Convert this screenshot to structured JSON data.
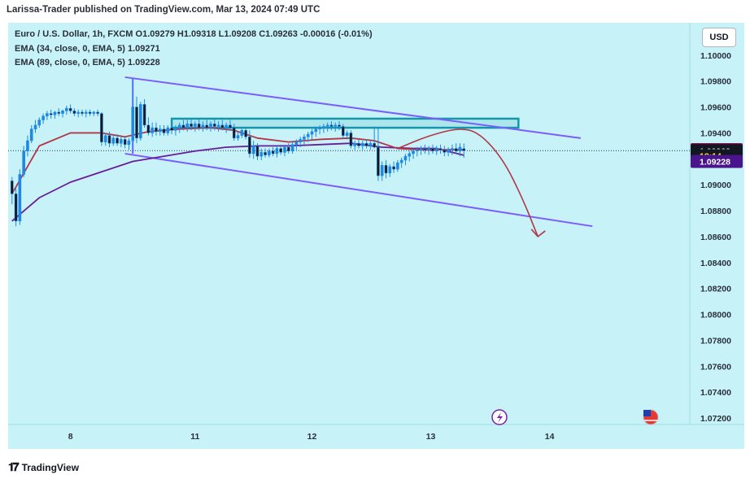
{
  "header": {
    "published": "Larissa-Trader published on TradingView.com, Mar 13, 2024 07:49 UTC"
  },
  "legend": {
    "line1": "Euro / U.S. Dollar, 1h, FXCM  O1.09279  H1.09318  L1.09208  C1.09263  -0.00016 (-0.01%)",
    "line2": "EMA (34, close, 0, EMA, 5)  1.09271",
    "line3": "EMA (89, close, 0, EMA, 5)  1.09228"
  },
  "currency_label": "USD",
  "footer": {
    "logo_icon": "tradingview-logo-icon",
    "brand": "TradingView"
  },
  "colors": {
    "background": "#c7f3f8",
    "candle": "#1e88e5",
    "ema34": "#b23645",
    "ema89": "#6a1b9a",
    "channel": "#7b5cff",
    "zone": "#1497a8",
    "projection": "#b23645"
  },
  "chart_data": {
    "type": "candlestick",
    "symbol": "EURUSD",
    "timeframe": "1h",
    "y_axis": {
      "ticks": [
        "1.10000",
        "1.09800",
        "1.09600",
        "1.09400",
        "1.09200",
        "1.09000",
        "1.08800",
        "1.08600",
        "1.08400",
        "1.08200",
        "1.08000",
        "1.07800",
        "1.07600",
        "1.07400",
        "1.07200"
      ],
      "ylim": [
        1.0715,
        1.1025
      ]
    },
    "x_axis": {
      "ticks": [
        {
          "label": "8",
          "t": 16
        },
        {
          "label": "11",
          "t": 48
        },
        {
          "label": "12",
          "t": 78
        },
        {
          "label": "13",
          "t": 108.5
        },
        {
          "label": "14",
          "t": 139
        }
      ],
      "xlim": [
        0,
        175
      ]
    },
    "price_tags": [
      {
        "label": "1.09271",
        "value": 1.09271,
        "color": "#880e4f",
        "text_color": "#ffffff"
      },
      {
        "label": "1.09263",
        "value": 1.09263,
        "color": "#131722",
        "text_color": "#ffffff"
      },
      {
        "label": "18:14",
        "value": 1.09225,
        "color": "#131722",
        "text_color": "#ffeb3b"
      },
      {
        "label": "1.09228",
        "value": 1.0918,
        "color": "#4a148c",
        "text_color": "#ffffff"
      }
    ],
    "candles": [
      {
        "t": 1,
        "o": 1.0903,
        "h": 1.0906,
        "l": 1.0885,
        "c": 1.0893
      },
      {
        "t": 2,
        "o": 1.0893,
        "h": 1.0898,
        "l": 1.0868,
        "c": 1.0872
      },
      {
        "t": 3,
        "o": 1.0872,
        "h": 1.0912,
        "l": 1.0869,
        "c": 1.0908
      },
      {
        "t": 4,
        "o": 1.0908,
        "h": 1.093,
        "l": 1.0906,
        "c": 1.0926
      },
      {
        "t": 5,
        "o": 1.0926,
        "h": 1.0938,
        "l": 1.0922,
        "c": 1.0934
      },
      {
        "t": 6,
        "o": 1.0934,
        "h": 1.0946,
        "l": 1.0932,
        "c": 1.0943
      },
      {
        "t": 7,
        "o": 1.0943,
        "h": 1.095,
        "l": 1.094,
        "c": 1.0946
      },
      {
        "t": 8,
        "o": 1.0946,
        "h": 1.0952,
        "l": 1.0944,
        "c": 1.095
      },
      {
        "t": 9,
        "o": 1.095,
        "h": 1.0955,
        "l": 1.0947,
        "c": 1.0953
      },
      {
        "t": 10,
        "o": 1.0953,
        "h": 1.0957,
        "l": 1.095,
        "c": 1.0955
      },
      {
        "t": 11,
        "o": 1.0955,
        "h": 1.0958,
        "l": 1.0951,
        "c": 1.0954
      },
      {
        "t": 12,
        "o": 1.0954,
        "h": 1.0957,
        "l": 1.0951,
        "c": 1.0956
      },
      {
        "t": 13,
        "o": 1.0956,
        "h": 1.0959,
        "l": 1.0953,
        "c": 1.0955
      },
      {
        "t": 14,
        "o": 1.0955,
        "h": 1.0958,
        "l": 1.0952,
        "c": 1.0957
      },
      {
        "t": 15,
        "o": 1.0957,
        "h": 1.0961,
        "l": 1.0954,
        "c": 1.0959
      },
      {
        "t": 16,
        "o": 1.0959,
        "h": 1.0962,
        "l": 1.0955,
        "c": 1.0957
      },
      {
        "t": 17,
        "o": 1.0957,
        "h": 1.0959,
        "l": 1.0953,
        "c": 1.0955
      },
      {
        "t": 18,
        "o": 1.0955,
        "h": 1.0958,
        "l": 1.0952,
        "c": 1.0956
      },
      {
        "t": 19,
        "o": 1.0956,
        "h": 1.0958,
        "l": 1.0953,
        "c": 1.0955
      },
      {
        "t": 20,
        "o": 1.0955,
        "h": 1.0958,
        "l": 1.0952,
        "c": 1.0956
      },
      {
        "t": 21,
        "o": 1.0956,
        "h": 1.0958,
        "l": 1.0953,
        "c": 1.0955
      },
      {
        "t": 22,
        "o": 1.0955,
        "h": 1.0957,
        "l": 1.0953,
        "c": 1.0956
      },
      {
        "t": 23,
        "o": 1.0956,
        "h": 1.0958,
        "l": 1.0953,
        "c": 1.0955
      },
      {
        "t": 24,
        "o": 1.0955,
        "h": 1.0956,
        "l": 1.093,
        "c": 1.0933
      },
      {
        "t": 25,
        "o": 1.0933,
        "h": 1.094,
        "l": 1.093,
        "c": 1.0938
      },
      {
        "t": 26,
        "o": 1.0938,
        "h": 1.0941,
        "l": 1.0929,
        "c": 1.0932
      },
      {
        "t": 27,
        "o": 1.0932,
        "h": 1.0938,
        "l": 1.093,
        "c": 1.0936
      },
      {
        "t": 28,
        "o": 1.0936,
        "h": 1.0939,
        "l": 1.093,
        "c": 1.0932
      },
      {
        "t": 29,
        "o": 1.0932,
        "h": 1.0937,
        "l": 1.0929,
        "c": 1.0935
      },
      {
        "t": 30,
        "o": 1.0935,
        "h": 1.0937,
        "l": 1.0928,
        "c": 1.0931
      },
      {
        "t": 31,
        "o": 1.0931,
        "h": 1.0936,
        "l": 1.0927,
        "c": 1.0934
      },
      {
        "t": 32,
        "o": 1.0934,
        "h": 1.0982,
        "l": 1.0928,
        "c": 1.096
      },
      {
        "t": 33,
        "o": 1.096,
        "h": 1.0968,
        "l": 1.0932,
        "c": 1.0936
      },
      {
        "t": 34,
        "o": 1.0936,
        "h": 1.0964,
        "l": 1.0934,
        "c": 1.0962
      },
      {
        "t": 35,
        "o": 1.0962,
        "h": 1.0966,
        "l": 1.0944,
        "c": 1.0946
      },
      {
        "t": 36,
        "o": 1.0946,
        "h": 1.0952,
        "l": 1.0938,
        "c": 1.094
      },
      {
        "t": 37,
        "o": 1.094,
        "h": 1.0948,
        "l": 1.0937,
        "c": 1.0944
      },
      {
        "t": 38,
        "o": 1.0944,
        "h": 1.0948,
        "l": 1.0938,
        "c": 1.0941
      },
      {
        "t": 39,
        "o": 1.0941,
        "h": 1.0946,
        "l": 1.0938,
        "c": 1.0943
      },
      {
        "t": 40,
        "o": 1.0943,
        "h": 1.0946,
        "l": 1.0938,
        "c": 1.094
      },
      {
        "t": 41,
        "o": 1.094,
        "h": 1.0946,
        "l": 1.0938,
        "c": 1.0944
      },
      {
        "t": 42,
        "o": 1.0944,
        "h": 1.0947,
        "l": 1.0939,
        "c": 1.0942
      },
      {
        "t": 43,
        "o": 1.0942,
        "h": 1.0946,
        "l": 1.0938,
        "c": 1.0944
      },
      {
        "t": 44,
        "o": 1.0944,
        "h": 1.0948,
        "l": 1.094,
        "c": 1.0946
      },
      {
        "t": 45,
        "o": 1.0946,
        "h": 1.095,
        "l": 1.0942,
        "c": 1.0944
      },
      {
        "t": 46,
        "o": 1.0944,
        "h": 1.095,
        "l": 1.0941,
        "c": 1.0947
      },
      {
        "t": 47,
        "o": 1.0947,
        "h": 1.0951,
        "l": 1.0942,
        "c": 1.0945
      },
      {
        "t": 48,
        "o": 1.0945,
        "h": 1.0949,
        "l": 1.0941,
        "c": 1.0947
      },
      {
        "t": 49,
        "o": 1.0947,
        "h": 1.0951,
        "l": 1.0942,
        "c": 1.0944
      },
      {
        "t": 50,
        "o": 1.0944,
        "h": 1.0949,
        "l": 1.0941,
        "c": 1.0946
      },
      {
        "t": 51,
        "o": 1.0946,
        "h": 1.095,
        "l": 1.0942,
        "c": 1.0944
      },
      {
        "t": 52,
        "o": 1.0944,
        "h": 1.0949,
        "l": 1.0941,
        "c": 1.0947
      },
      {
        "t": 53,
        "o": 1.0947,
        "h": 1.0951,
        "l": 1.0942,
        "c": 1.0945
      },
      {
        "t": 54,
        "o": 1.0945,
        "h": 1.0949,
        "l": 1.0941,
        "c": 1.0946
      },
      {
        "t": 55,
        "o": 1.0946,
        "h": 1.095,
        "l": 1.0942,
        "c": 1.0944
      },
      {
        "t": 56,
        "o": 1.0944,
        "h": 1.0948,
        "l": 1.094,
        "c": 1.0946
      },
      {
        "t": 57,
        "o": 1.0946,
        "h": 1.095,
        "l": 1.0942,
        "c": 1.0944
      },
      {
        "t": 58,
        "o": 1.0944,
        "h": 1.0947,
        "l": 1.0934,
        "c": 1.0936
      },
      {
        "t": 59,
        "o": 1.0936,
        "h": 1.0941,
        "l": 1.0934,
        "c": 1.0938
      },
      {
        "t": 60,
        "o": 1.0938,
        "h": 1.0944,
        "l": 1.0936,
        "c": 1.0942
      },
      {
        "t": 61,
        "o": 1.0942,
        "h": 1.0944,
        "l": 1.0935,
        "c": 1.0937
      },
      {
        "t": 62,
        "o": 1.0937,
        "h": 1.0942,
        "l": 1.0921,
        "c": 1.0924
      },
      {
        "t": 63,
        "o": 1.0924,
        "h": 1.0934,
        "l": 1.092,
        "c": 1.093
      },
      {
        "t": 64,
        "o": 1.093,
        "h": 1.0932,
        "l": 1.0919,
        "c": 1.0922
      },
      {
        "t": 65,
        "o": 1.0922,
        "h": 1.0928,
        "l": 1.0919,
        "c": 1.0925
      },
      {
        "t": 66,
        "o": 1.0925,
        "h": 1.0928,
        "l": 1.0921,
        "c": 1.0923
      },
      {
        "t": 67,
        "o": 1.0923,
        "h": 1.0928,
        "l": 1.0921,
        "c": 1.0926
      },
      {
        "t": 68,
        "o": 1.0926,
        "h": 1.0929,
        "l": 1.0922,
        "c": 1.0924
      },
      {
        "t": 69,
        "o": 1.0924,
        "h": 1.093,
        "l": 1.0921,
        "c": 1.0928
      },
      {
        "t": 70,
        "o": 1.0928,
        "h": 1.0931,
        "l": 1.0923,
        "c": 1.0925
      },
      {
        "t": 71,
        "o": 1.0925,
        "h": 1.0931,
        "l": 1.0922,
        "c": 1.0929
      },
      {
        "t": 72,
        "o": 1.0929,
        "h": 1.0932,
        "l": 1.0924,
        "c": 1.0926
      },
      {
        "t": 73,
        "o": 1.0926,
        "h": 1.0933,
        "l": 1.0924,
        "c": 1.0931
      },
      {
        "t": 74,
        "o": 1.0931,
        "h": 1.0935,
        "l": 1.0927,
        "c": 1.0933
      },
      {
        "t": 75,
        "o": 1.0933,
        "h": 1.0937,
        "l": 1.0929,
        "c": 1.0935
      },
      {
        "t": 76,
        "o": 1.0935,
        "h": 1.0939,
        "l": 1.0931,
        "c": 1.0937
      },
      {
        "t": 77,
        "o": 1.0937,
        "h": 1.0941,
        "l": 1.0933,
        "c": 1.0939
      },
      {
        "t": 78,
        "o": 1.0939,
        "h": 1.0943,
        "l": 1.0935,
        "c": 1.0941
      },
      {
        "t": 79,
        "o": 1.0941,
        "h": 1.0945,
        "l": 1.0937,
        "c": 1.0943
      },
      {
        "t": 80,
        "o": 1.0943,
        "h": 1.0946,
        "l": 1.0939,
        "c": 1.0944
      },
      {
        "t": 81,
        "o": 1.0944,
        "h": 1.0947,
        "l": 1.094,
        "c": 1.0945
      },
      {
        "t": 82,
        "o": 1.0945,
        "h": 1.0948,
        "l": 1.0941,
        "c": 1.0946
      },
      {
        "t": 83,
        "o": 1.0946,
        "h": 1.0949,
        "l": 1.0942,
        "c": 1.0945
      },
      {
        "t": 84,
        "o": 1.0945,
        "h": 1.0948,
        "l": 1.0941,
        "c": 1.0946
      },
      {
        "t": 85,
        "o": 1.0946,
        "h": 1.0949,
        "l": 1.0942,
        "c": 1.0945
      },
      {
        "t": 86,
        "o": 1.0945,
        "h": 1.0947,
        "l": 1.0936,
        "c": 1.0938
      },
      {
        "t": 87,
        "o": 1.0938,
        "h": 1.0942,
        "l": 1.0935,
        "c": 1.094
      },
      {
        "t": 88,
        "o": 1.094,
        "h": 1.0942,
        "l": 1.0928,
        "c": 1.093
      },
      {
        "t": 89,
        "o": 1.093,
        "h": 1.0934,
        "l": 1.0927,
        "c": 1.0932
      },
      {
        "t": 90,
        "o": 1.0932,
        "h": 1.0935,
        "l": 1.0928,
        "c": 1.093
      },
      {
        "t": 91,
        "o": 1.093,
        "h": 1.0934,
        "l": 1.0927,
        "c": 1.0932
      },
      {
        "t": 92,
        "o": 1.0932,
        "h": 1.0935,
        "l": 1.0928,
        "c": 1.093
      },
      {
        "t": 93,
        "o": 1.093,
        "h": 1.0934,
        "l": 1.0927,
        "c": 1.0932
      },
      {
        "t": 94,
        "o": 1.0932,
        "h": 1.0945,
        "l": 1.0928,
        "c": 1.0929
      },
      {
        "t": 95,
        "o": 1.0929,
        "h": 1.0944,
        "l": 1.0903,
        "c": 1.0907
      },
      {
        "t": 96,
        "o": 1.0907,
        "h": 1.0918,
        "l": 1.0903,
        "c": 1.0915
      },
      {
        "t": 97,
        "o": 1.0915,
        "h": 1.0919,
        "l": 1.0905,
        "c": 1.0909
      },
      {
        "t": 98,
        "o": 1.0909,
        "h": 1.0916,
        "l": 1.0906,
        "c": 1.0914
      },
      {
        "t": 99,
        "o": 1.0914,
        "h": 1.0918,
        "l": 1.0909,
        "c": 1.0912
      },
      {
        "t": 100,
        "o": 1.0912,
        "h": 1.0919,
        "l": 1.091,
        "c": 1.0917
      },
      {
        "t": 101,
        "o": 1.0917,
        "h": 1.0921,
        "l": 1.0913,
        "c": 1.0919
      },
      {
        "t": 102,
        "o": 1.0919,
        "h": 1.0924,
        "l": 1.0915,
        "c": 1.0922
      },
      {
        "t": 103,
        "o": 1.0922,
        "h": 1.0926,
        "l": 1.0918,
        "c": 1.0924
      },
      {
        "t": 104,
        "o": 1.0924,
        "h": 1.0928,
        "l": 1.092,
        "c": 1.0926
      },
      {
        "t": 105,
        "o": 1.0926,
        "h": 1.0929,
        "l": 1.0922,
        "c": 1.0927
      },
      {
        "t": 106,
        "o": 1.0927,
        "h": 1.093,
        "l": 1.0923,
        "c": 1.0928
      },
      {
        "t": 107,
        "o": 1.0928,
        "h": 1.0931,
        "l": 1.0924,
        "c": 1.0927
      },
      {
        "t": 108,
        "o": 1.0927,
        "h": 1.093,
        "l": 1.0923,
        "c": 1.0928
      },
      {
        "t": 109,
        "o": 1.0928,
        "h": 1.0931,
        "l": 1.0924,
        "c": 1.0926
      },
      {
        "t": 110,
        "o": 1.0926,
        "h": 1.093,
        "l": 1.0923,
        "c": 1.0928
      },
      {
        "t": 111,
        "o": 1.0928,
        "h": 1.0931,
        "l": 1.0924,
        "c": 1.0927
      },
      {
        "t": 112,
        "o": 1.0927,
        "h": 1.093,
        "l": 1.0922,
        "c": 1.0925
      },
      {
        "t": 113,
        "o": 1.0925,
        "h": 1.0929,
        "l": 1.0922,
        "c": 1.0927
      },
      {
        "t": 114,
        "o": 1.0927,
        "h": 1.0931,
        "l": 1.0923,
        "c": 1.0928
      },
      {
        "t": 115,
        "o": 1.0928,
        "h": 1.0932,
        "l": 1.0924,
        "c": 1.0926
      },
      {
        "t": 116,
        "o": 1.0926,
        "h": 1.0932,
        "l": 1.0922,
        "c": 1.0929
      },
      {
        "t": 117,
        "o": 1.09279,
        "h": 1.09318,
        "l": 1.09208,
        "c": 1.09263
      }
    ],
    "ema34": [
      [
        1,
        1.0893
      ],
      [
        8,
        1.093
      ],
      [
        16,
        1.094
      ],
      [
        24,
        1.094
      ],
      [
        30,
        1.0937
      ],
      [
        36,
        1.0941
      ],
      [
        44,
        1.0943
      ],
      [
        52,
        1.0944
      ],
      [
        58,
        1.0942
      ],
      [
        64,
        1.0936
      ],
      [
        72,
        1.0933
      ],
      [
        80,
        1.0935
      ],
      [
        88,
        1.0936
      ],
      [
        94,
        1.0934
      ],
      [
        100,
        1.0928
      ],
      [
        106,
        1.0927
      ],
      [
        112,
        1.0927
      ],
      [
        117,
        1.09271
      ]
    ],
    "ema89": [
      [
        1,
        1.0872
      ],
      [
        8,
        1.089
      ],
      [
        16,
        1.0902
      ],
      [
        24,
        1.091
      ],
      [
        32,
        1.0918
      ],
      [
        40,
        1.0922
      ],
      [
        48,
        1.0926
      ],
      [
        56,
        1.0929
      ],
      [
        64,
        1.093
      ],
      [
        72,
        1.093
      ],
      [
        80,
        1.0931
      ],
      [
        88,
        1.0932
      ],
      [
        96,
        1.0929
      ],
      [
        104,
        1.0928
      ],
      [
        110,
        1.0928
      ],
      [
        117,
        1.09228
      ]
    ],
    "drawings": {
      "channel_upper": [
        [
          30,
          1.0983
        ],
        [
          147,
          1.0936
        ]
      ],
      "channel_lower": [
        [
          30,
          1.0924
        ],
        [
          150,
          1.0868
        ]
      ],
      "channel_left_edge": [
        [
          32,
          1.0982
        ],
        [
          32,
          1.0924
        ]
      ],
      "resistance_zone": {
        "t0": 42,
        "t1": 131,
        "top": 1.0951,
        "bottom": 1.0944
      },
      "projection_path": [
        [
          100,
          1.0928
        ],
        [
          108,
          1.0938
        ],
        [
          116,
          1.0944
        ],
        [
          121,
          1.094
        ],
        [
          127,
          1.092
        ],
        [
          132,
          1.089
        ],
        [
          136,
          1.086
        ]
      ],
      "last_price_line": 1.09263
    }
  }
}
